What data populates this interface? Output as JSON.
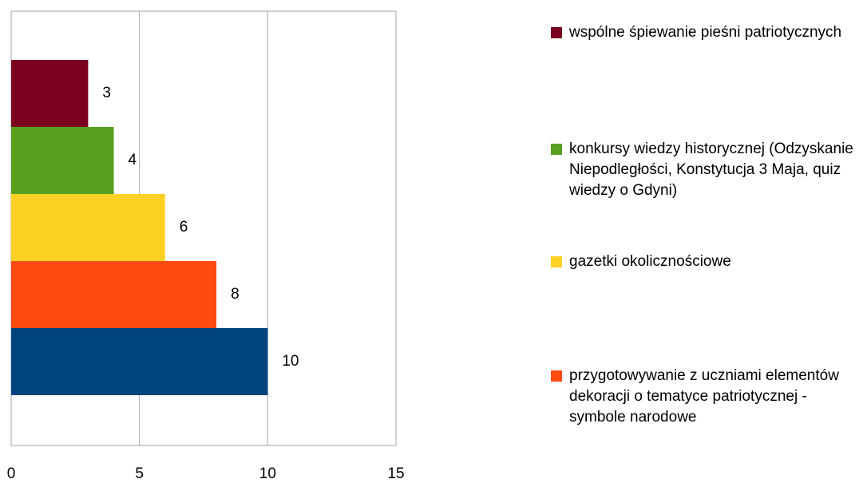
{
  "chart_data": {
    "type": "bar",
    "orientation": "horizontal",
    "series": [
      {
        "name": "wspólne śpiewanie pieśni patriotycznych",
        "color": "#7b0020",
        "values": [
          3
        ]
      },
      {
        "name": "konkursy wiedzy historycznej (Odzyskanie Niepodległości, Konstytucja 3 Maja, quiz wiedzy o Gdyni)",
        "color": "#5aa020",
        "values": [
          4
        ]
      },
      {
        "name": "gazetki okolicznościowe",
        "color": "#fdd123",
        "values": [
          6
        ]
      },
      {
        "name": "przygotowywanie z uczniami elementów dekoracji o tematyce patriotycznej - symbole narodowe",
        "color": "#ff4b12",
        "values": [
          8
        ]
      },
      {
        "color": "#00447e",
        "values": [
          10
        ]
      }
    ],
    "xlim": [
      0,
      15
    ],
    "xticks": [
      0,
      5,
      10,
      15
    ],
    "grid": true,
    "legend": "right"
  }
}
